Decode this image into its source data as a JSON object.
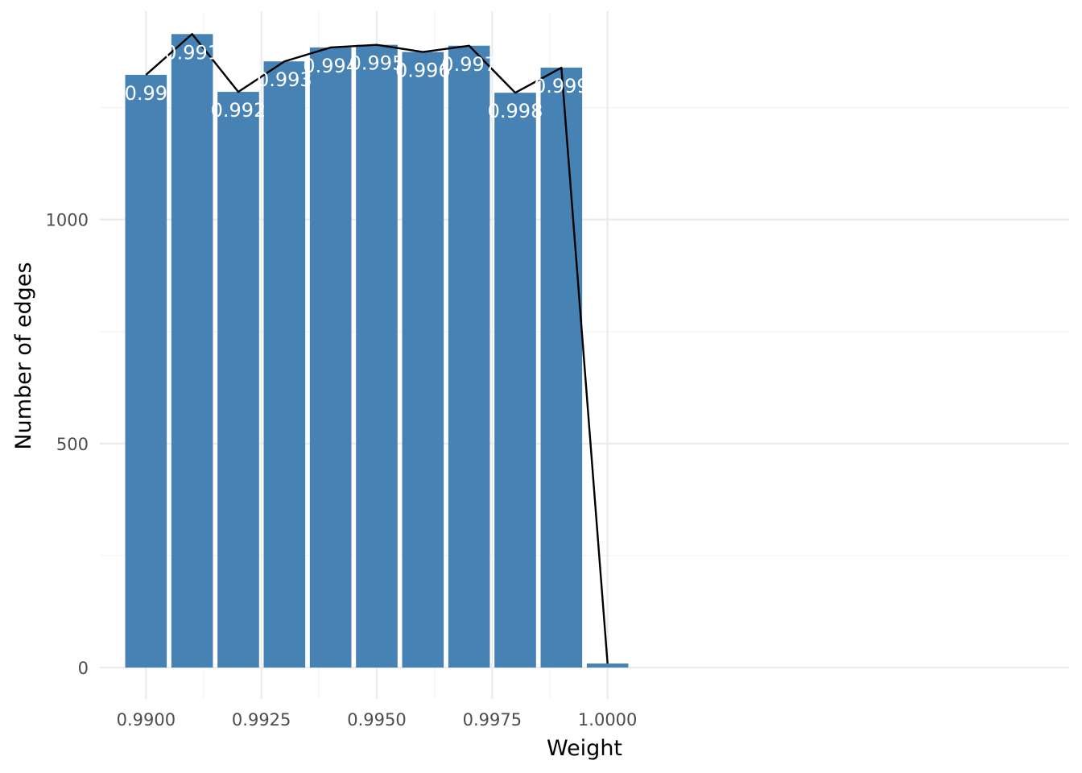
{
  "chart_data": {
    "type": "bar",
    "title": "",
    "xlabel": "Weight",
    "ylabel": "Number of edges",
    "x": [
      0.99,
      0.991,
      0.992,
      0.993,
      0.994,
      0.995,
      0.996,
      0.997,
      0.998,
      0.999,
      1.0
    ],
    "values": [
      1323,
      1414,
      1285,
      1353,
      1384,
      1390,
      1374,
      1388,
      1283,
      1339,
      9
    ],
    "bar_labels": [
      "0.99",
      "0.991",
      "0.992",
      "0.993",
      "0.994",
      "0.995",
      "0.996",
      "0.997",
      "0.998",
      "0.999",
      ""
    ],
    "line": {
      "x": [
        0.99,
        0.991,
        0.992,
        0.993,
        0.994,
        0.995,
        0.996,
        0.997,
        0.998,
        0.999,
        1.0
      ],
      "y": [
        1323,
        1414,
        1285,
        1353,
        1384,
        1390,
        1374,
        1388,
        1283,
        1339,
        9
      ]
    },
    "xlim": [
      0.989,
      1.01
    ],
    "ylim": [
      -70,
      1490
    ],
    "x_ticks": [
      0.99,
      0.9925,
      0.995,
      0.9975,
      1.0
    ],
    "x_tick_labels": [
      "0.9900",
      "0.9925",
      "0.9950",
      "0.9975",
      "1.0000"
    ],
    "y_ticks": [
      0,
      500,
      1000
    ],
    "y_tick_labels": [
      "0",
      "500",
      "1000"
    ],
    "bar_color": "#4682b4",
    "line_color": "#000000",
    "bar_label_color": "#ffffff",
    "grid": true,
    "legend": "none"
  }
}
